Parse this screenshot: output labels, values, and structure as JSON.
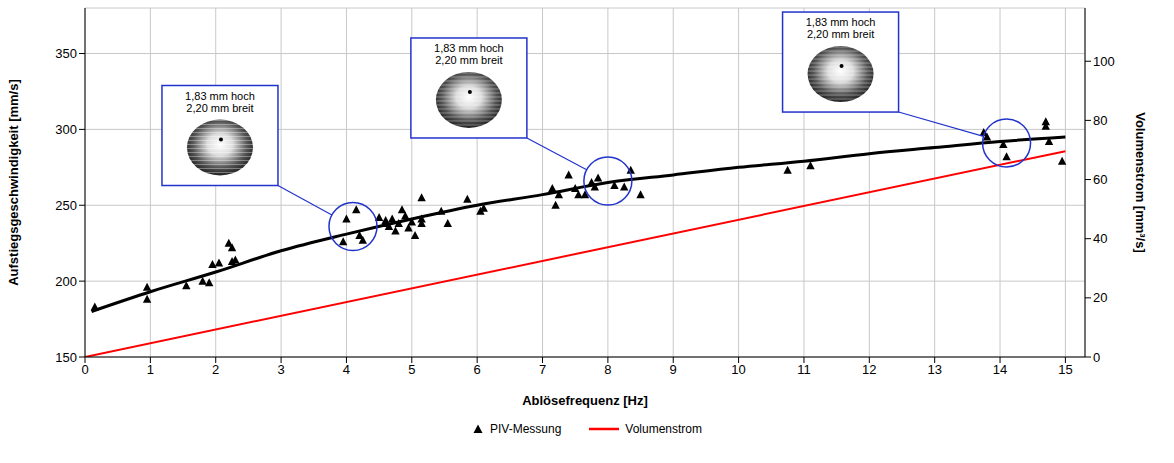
{
  "chart_data": {
    "type": "scatter",
    "x_label": "Ablösefrequenz [Hz]",
    "y_label": "Aufstiegsgeschwindigkeit [mm/s]",
    "y2_label": "Volumenstrom [mm³/s]",
    "xlim": [
      0,
      15.3
    ],
    "xticks": [
      0,
      1,
      2,
      3,
      4,
      5,
      6,
      7,
      8,
      9,
      10,
      11,
      12,
      13,
      14,
      15
    ],
    "ylim": [
      150,
      380
    ],
    "yticks": [
      150,
      200,
      250,
      300,
      350
    ],
    "y2lim": [
      0,
      118
    ],
    "y2ticks": [
      0,
      20,
      40,
      60,
      80,
      100
    ],
    "grid": true,
    "legend": "bottom",
    "series": [
      {
        "name": "PIV-Messung",
        "type": "scatter",
        "color": "#000000",
        "marker": "triangle",
        "x": [
          0.15,
          0.95,
          0.95,
          1.55,
          1.8,
          1.9,
          1.95,
          2.05,
          2.2,
          2.25,
          2.25,
          2.3,
          3.95,
          4.0,
          4.15,
          4.2,
          4.25,
          4.5,
          4.6,
          4.6,
          4.65,
          4.7,
          4.75,
          4.8,
          4.85,
          4.9,
          4.95,
          5.0,
          5.05,
          5.15,
          5.15,
          5.15,
          5.45,
          5.55,
          5.85,
          6.05,
          6.1,
          7.15,
          7.2,
          7.25,
          7.4,
          7.5,
          7.55,
          7.65,
          7.75,
          7.8,
          7.85,
          8.1,
          8.25,
          8.35,
          8.5,
          10.75,
          11.1,
          13.75,
          13.8,
          14.05,
          14.1,
          14.7,
          14.7,
          14.75,
          14.95
        ],
        "values": [
          183,
          196,
          188,
          197,
          200,
          199,
          211,
          212,
          225,
          222,
          213,
          214,
          226,
          241,
          247,
          230,
          227,
          242,
          238,
          240,
          236,
          241,
          233,
          238,
          247,
          243,
          235,
          239,
          230,
          255,
          238,
          241,
          246,
          238,
          254,
          246,
          248,
          261,
          250,
          257,
          270,
          261,
          257,
          257,
          265,
          262,
          268,
          263,
          262,
          273,
          257,
          273,
          276,
          298,
          295,
          290,
          282,
          305,
          302,
          292,
          279
        ]
      },
      {
        "type": "line",
        "color": "#000000",
        "line_style": "solid",
        "x": [
          0.1,
          1,
          2,
          3,
          4,
          5,
          6,
          7,
          8,
          9,
          10,
          11,
          12,
          13,
          14,
          15
        ],
        "values": [
          180,
          193,
          206,
          220,
          231,
          241,
          250,
          257,
          265,
          270,
          275,
          279,
          284,
          288,
          292,
          295
        ]
      },
      {
        "name": "Volumenstrom",
        "type": "line",
        "color": "#ff0000",
        "line_style": "solid",
        "axis": "y2",
        "x": [
          0,
          15
        ],
        "values": [
          0,
          69.6
        ]
      }
    ],
    "annotations": [
      {
        "x": 4.1,
        "y": 236,
        "text": [
          "1,83 mm hoch",
          "2,20 mm breit"
        ]
      },
      {
        "x": 8.0,
        "y": 266,
        "text": [
          "1,83 mm hoch",
          "2,20 mm breit"
        ]
      },
      {
        "x": 14.1,
        "y": 291,
        "text": [
          "1,83 mm hoch",
          "2,20 mm breit"
        ]
      }
    ]
  }
}
